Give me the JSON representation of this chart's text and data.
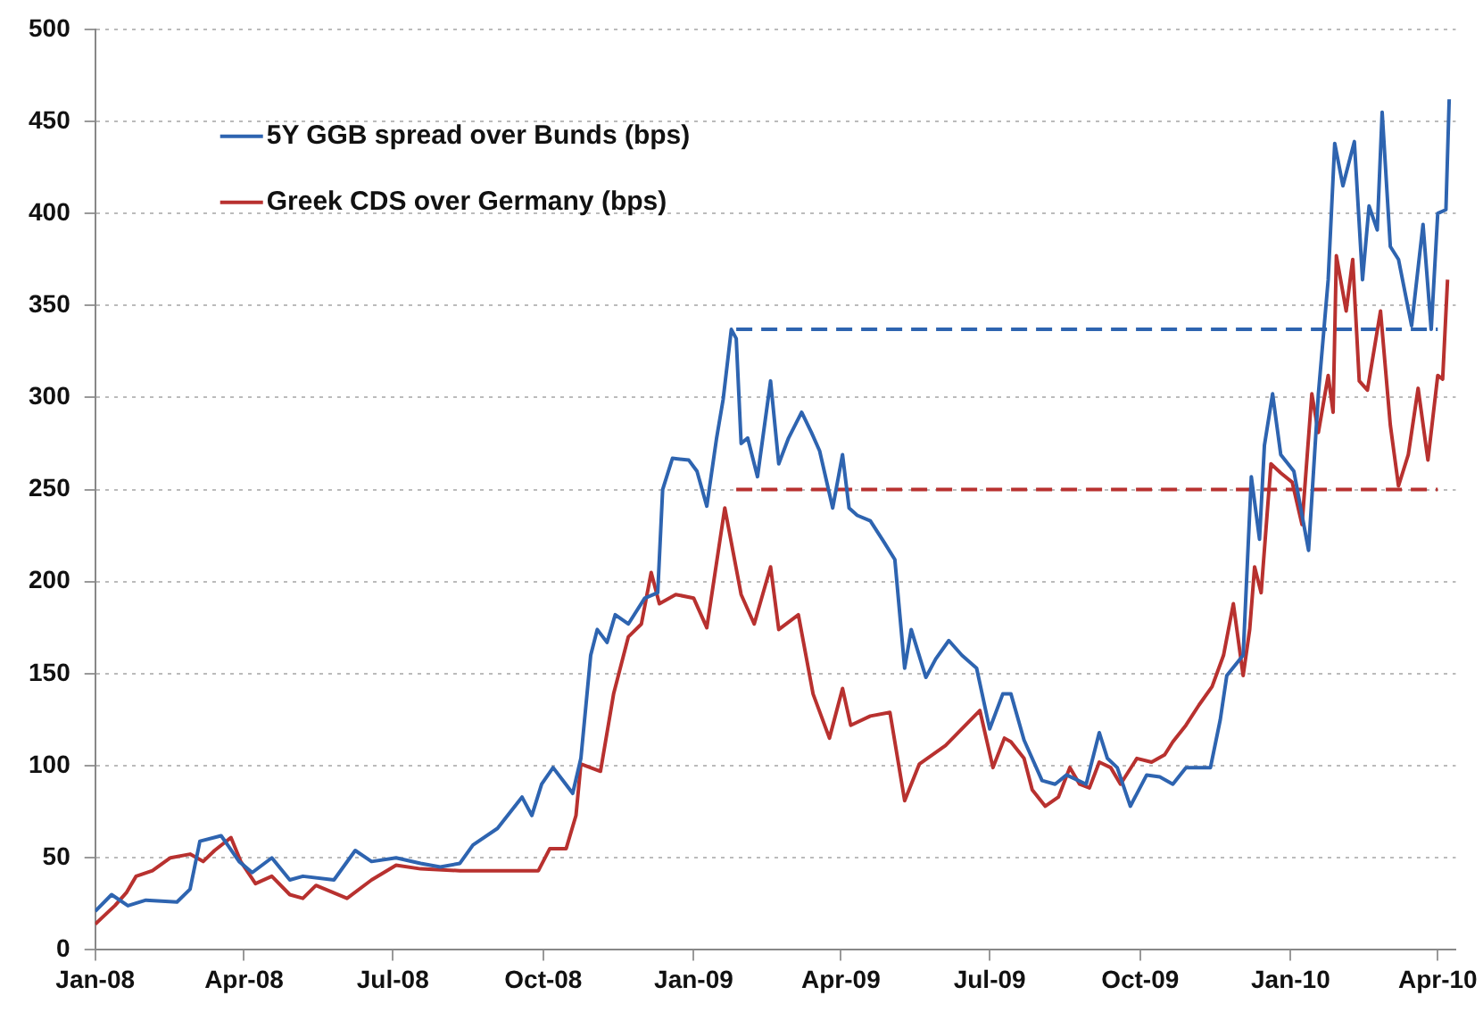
{
  "chart_data": {
    "type": "line",
    "legend": "top left",
    "grid": "y",
    "marker": "none",
    "line_style": "solid",
    "xlim": [
      "2008-01-01",
      "2010-04-12"
    ],
    "xticks": [
      {
        "value": "2008-01-01",
        "label": "Jan-08"
      },
      {
        "value": "2008-04-01",
        "label": "Apr-08"
      },
      {
        "value": "2008-07-01",
        "label": "Jul-08"
      },
      {
        "value": "2008-10-01",
        "label": "Oct-08"
      },
      {
        "value": "2009-01-01",
        "label": "Jan-09"
      },
      {
        "value": "2009-04-01",
        "label": "Apr-09"
      },
      {
        "value": "2009-07-01",
        "label": "Jul-09"
      },
      {
        "value": "2009-10-01",
        "label": "Oct-09"
      },
      {
        "value": "2010-01-01",
        "label": "Jan-10"
      },
      {
        "value": "2010-04-01",
        "label": "Apr-10"
      }
    ],
    "ylim": [
      0,
      500
    ],
    "yticks": [
      0,
      50,
      100,
      150,
      200,
      250,
      300,
      350,
      400,
      450,
      500
    ],
    "series": [
      {
        "name": "5Y GGB spread over Bunds (bps)",
        "color": "#2e64b0",
        "x": [
          "2008-01-01",
          "2008-01-11",
          "2008-01-21",
          "2008-02-01",
          "2008-02-20",
          "2008-02-28",
          "2008-03-05",
          "2008-03-18",
          "2008-03-22",
          "2008-03-29",
          "2008-04-06",
          "2008-04-18",
          "2008-04-29",
          "2008-05-07",
          "2008-05-26",
          "2008-06-08",
          "2008-06-18",
          "2008-07-03",
          "2008-07-18",
          "2008-07-30",
          "2008-08-11",
          "2008-08-19",
          "2008-09-03",
          "2008-09-18",
          "2008-09-24",
          "2008-09-30",
          "2008-10-07",
          "2008-10-13",
          "2008-10-19",
          "2008-10-24",
          "2008-10-30",
          "2008-11-03",
          "2008-11-09",
          "2008-11-14",
          "2008-11-22",
          "2008-12-02",
          "2008-12-10",
          "2008-12-13",
          "2008-12-19",
          "2008-12-29",
          "2009-01-03",
          "2009-01-09",
          "2009-01-15",
          "2009-01-19",
          "2009-01-24",
          "2009-01-27",
          "2009-01-30",
          "2009-02-03",
          "2009-02-09",
          "2009-02-17",
          "2009-02-22",
          "2009-02-28",
          "2009-03-08",
          "2009-03-14",
          "2009-03-19",
          "2009-03-27",
          "2009-04-02",
          "2009-04-06",
          "2009-04-11",
          "2009-04-19",
          "2009-04-27",
          "2009-05-04",
          "2009-05-10",
          "2009-05-14",
          "2009-05-23",
          "2009-05-29",
          "2009-06-06",
          "2009-06-14",
          "2009-06-23",
          "2009-07-01",
          "2009-07-09",
          "2009-07-14",
          "2009-07-22",
          "2009-08-02",
          "2009-08-10",
          "2009-08-17",
          "2009-08-29",
          "2009-09-06",
          "2009-09-11",
          "2009-09-17",
          "2009-09-25",
          "2009-10-05",
          "2009-10-13",
          "2009-10-21",
          "2009-10-29",
          "2009-11-13",
          "2009-11-19",
          "2009-11-23",
          "2009-12-03",
          "2009-12-08",
          "2009-12-13",
          "2009-12-16",
          "2009-12-21",
          "2009-12-26",
          "2010-01-03",
          "2010-01-12",
          "2010-01-18",
          "2010-01-24",
          "2010-01-28",
          "2010-02-02",
          "2010-02-09",
          "2010-02-14",
          "2010-02-18",
          "2010-02-23",
          "2010-02-26",
          "2010-03-03",
          "2010-03-08",
          "2010-03-16",
          "2010-03-23",
          "2010-03-28",
          "2010-04-01",
          "2010-04-06",
          "2010-04-08"
        ],
        "values": [
          21,
          30,
          24,
          27,
          26,
          33,
          59,
          62,
          57,
          48,
          42,
          50,
          38,
          40,
          38,
          54,
          48,
          50,
          47,
          45,
          47,
          57,
          66,
          83,
          73,
          90,
          99,
          92,
          85,
          104,
          160,
          174,
          167,
          182,
          177,
          191,
          194,
          250,
          267,
          266,
          260,
          241,
          278,
          299,
          337,
          332,
          275,
          278,
          257,
          309,
          264,
          278,
          292,
          281,
          271,
          240,
          269,
          240,
          236,
          233,
          222,
          212,
          153,
          174,
          148,
          158,
          168,
          160,
          153,
          120,
          139,
          139,
          114,
          92,
          90,
          95,
          90,
          118,
          104,
          99,
          78,
          95,
          94,
          90,
          99,
          99,
          125,
          149,
          160,
          257,
          223,
          274,
          302,
          269,
          260,
          217,
          302,
          364,
          438,
          415,
          439,
          364,
          404,
          391,
          455,
          382,
          375,
          339,
          394,
          337,
          400,
          402,
          462
        ]
      },
      {
        "name": "Greek CDS over Germany (bps)",
        "color": "#b8312f",
        "x": [
          "2008-01-01",
          "2008-01-13",
          "2008-01-20",
          "2008-01-26",
          "2008-02-05",
          "2008-02-16",
          "2008-02-28",
          "2008-03-07",
          "2008-03-14",
          "2008-03-24",
          "2008-03-30",
          "2008-04-08",
          "2008-04-18",
          "2008-04-29",
          "2008-05-07",
          "2008-05-15",
          "2008-06-03",
          "2008-06-18",
          "2008-07-03",
          "2008-07-18",
          "2008-08-11",
          "2008-09-01",
          "2008-09-28",
          "2008-10-05",
          "2008-10-15",
          "2008-10-21",
          "2008-10-24",
          "2008-11-05",
          "2008-11-13",
          "2008-11-22",
          "2008-11-30",
          "2008-12-06",
          "2008-12-11",
          "2008-12-21",
          "2009-01-01",
          "2009-01-09",
          "2009-01-20",
          "2009-01-30",
          "2009-02-07",
          "2009-02-17",
          "2009-02-22",
          "2009-03-06",
          "2009-03-15",
          "2009-03-25",
          "2009-04-02",
          "2009-04-07",
          "2009-04-19",
          "2009-05-01",
          "2009-05-10",
          "2009-05-19",
          "2009-06-04",
          "2009-06-25",
          "2009-07-03",
          "2009-07-10",
          "2009-07-14",
          "2009-07-22",
          "2009-07-27",
          "2009-08-04",
          "2009-08-12",
          "2009-08-19",
          "2009-08-25",
          "2009-08-31",
          "2009-09-06",
          "2009-09-13",
          "2009-09-19",
          "2009-09-29",
          "2009-10-08",
          "2009-10-16",
          "2009-10-21",
          "2009-10-29",
          "2009-11-06",
          "2009-11-14",
          "2009-11-21",
          "2009-11-27",
          "2009-12-03",
          "2009-12-07",
          "2009-12-10",
          "2009-12-14",
          "2009-12-20",
          "2009-12-26",
          "2010-01-02",
          "2010-01-08",
          "2010-01-14",
          "2010-01-18",
          "2010-01-24",
          "2010-01-27",
          "2010-01-29",
          "2010-02-04",
          "2010-02-08",
          "2010-02-12",
          "2010-02-17",
          "2010-02-25",
          "2010-03-03",
          "2010-03-08",
          "2010-03-14",
          "2010-03-20",
          "2010-03-26",
          "2010-04-01",
          "2010-04-04",
          "2010-04-07"
        ],
        "values": [
          14,
          24,
          31,
          40,
          43,
          50,
          52,
          48,
          54,
          61,
          48,
          36,
          40,
          30,
          28,
          35,
          28,
          38,
          46,
          44,
          43,
          43,
          43,
          55,
          55,
          73,
          101,
          97,
          139,
          170,
          177,
          205,
          188,
          193,
          191,
          175,
          240,
          193,
          177,
          208,
          174,
          182,
          139,
          115,
          142,
          122,
          127,
          129,
          81,
          101,
          111,
          130,
          99,
          115,
          113,
          104,
          87,
          78,
          83,
          99,
          90,
          88,
          102,
          99,
          90,
          104,
          102,
          106,
          113,
          122,
          133,
          143,
          160,
          188,
          149,
          174,
          208,
          194,
          264,
          259,
          254,
          231,
          302,
          281,
          312,
          292,
          377,
          347,
          375,
          309,
          304,
          347,
          285,
          252,
          269,
          305,
          266,
          312,
          310,
          364
        ]
      },
      {
        "color": "#2e64b0",
        "line_style": "dashed",
        "x": [
          "2009-01-27",
          "2010-04-01"
        ],
        "values": [
          337,
          337
        ]
      },
      {
        "color": "#b8312f",
        "line_style": "dashed",
        "x": [
          "2009-01-27",
          "2010-04-01"
        ],
        "values": [
          250,
          250
        ]
      }
    ]
  }
}
